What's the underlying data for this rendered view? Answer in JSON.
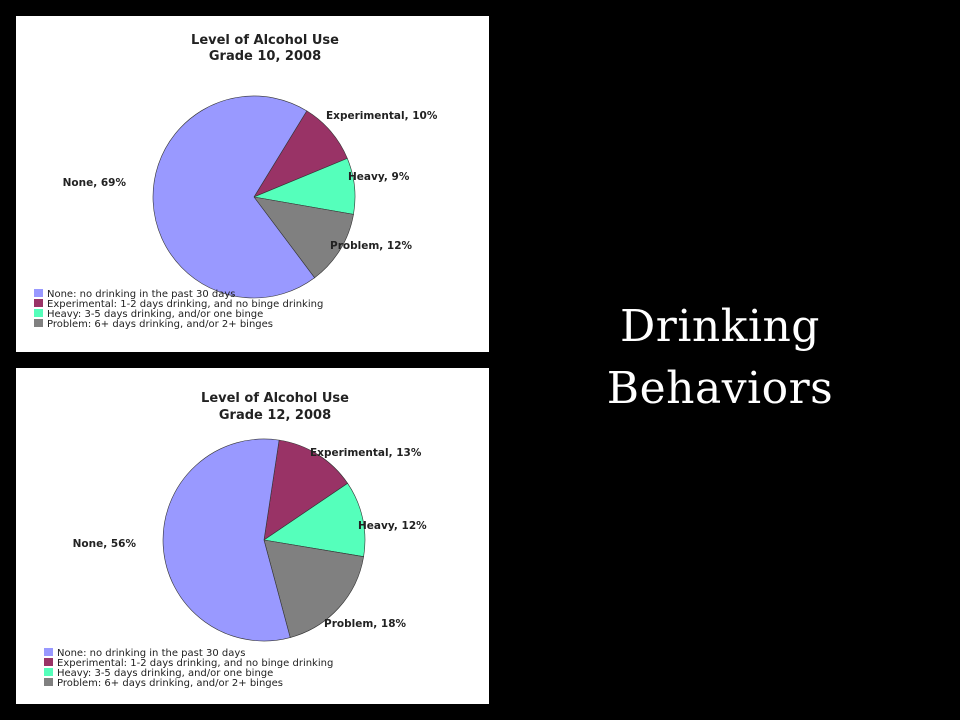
{
  "slide": {
    "title_line1": "Drinking",
    "title_line2": "Behaviors"
  },
  "colors": {
    "None": "#9999ff",
    "Experimental": "#993366",
    "Heavy": "#55ffbb",
    "Problem": "#808080"
  },
  "chart_data": [
    {
      "type": "pie",
      "title": "Level of Alcohol Use",
      "subtitle": "Grade 10, 2008",
      "categories": [
        "None",
        "Experimental",
        "Heavy",
        "Problem"
      ],
      "values": [
        69,
        10,
        9,
        12
      ],
      "labels": [
        "None, 69%",
        "Experimental, 10%",
        "Heavy, 9%",
        "Problem, 12%"
      ],
      "legend": [
        "None: no drinking in the past 30 days",
        "Experimental: 1-2 days drinking, and no binge drinking",
        "Heavy: 3-5 days drinking, and/or one binge",
        "Problem: 6+ days drinking, and/or 2+ binges"
      ],
      "legend_position": "bottom-left"
    },
    {
      "type": "pie",
      "title": "Level of Alcohol Use",
      "subtitle": "Grade 12, 2008",
      "categories": [
        "None",
        "Experimental",
        "Heavy",
        "Problem"
      ],
      "values": [
        56,
        13,
        12,
        18
      ],
      "labels": [
        "None, 56%",
        "Experimental, 13%",
        "Heavy, 12%",
        "Problem, 18%"
      ],
      "legend": [
        "None: no drinking in the past 30 days",
        "Experimental: 1-2 days drinking, and no binge drinking",
        "Heavy: 3-5 days drinking, and/or one binge",
        "Problem: 6+ days drinking, and/or 2+ binges"
      ],
      "legend_position": "bottom-left"
    }
  ]
}
